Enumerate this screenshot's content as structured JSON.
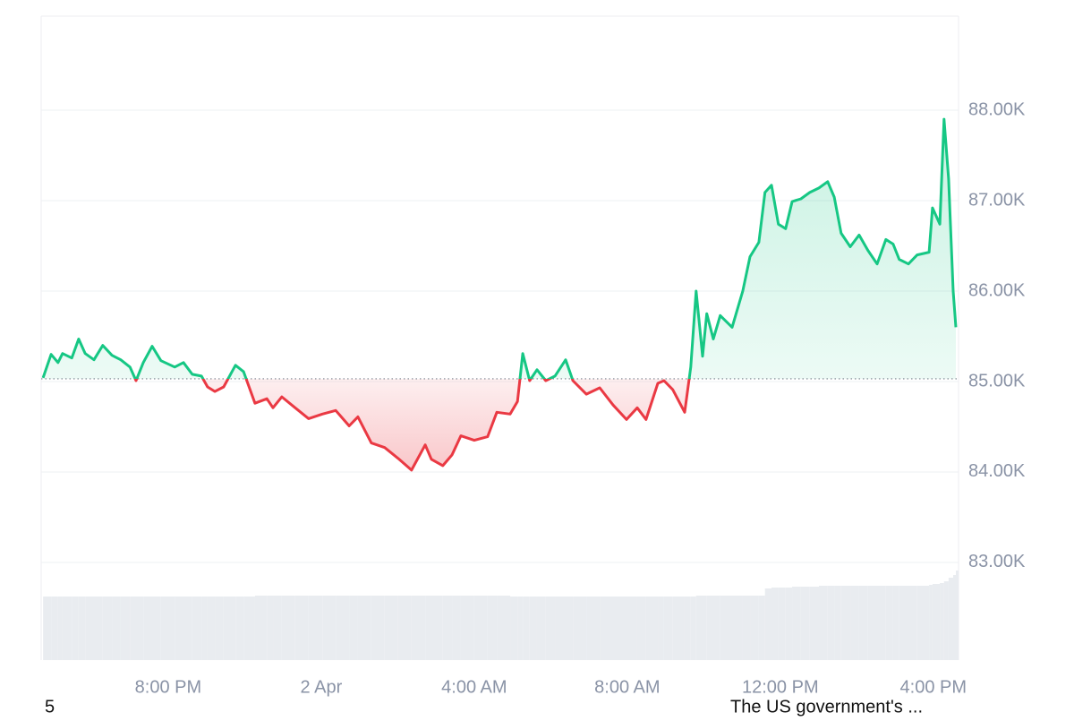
{
  "chart_data": {
    "type": "line",
    "xlim": [
      16.68,
      40.66
    ],
    "ylim": [
      81920,
      89040
    ],
    "baseline": 85030,
    "up_color": "#16c784",
    "down_color": "#ea3943",
    "volume_color": "#e9ecf0",
    "volume_ylim": [
      0,
      100
    ],
    "grid": true,
    "xticks": [
      {
        "value": 20,
        "label": "8:00 PM"
      },
      {
        "value": 24,
        "label": "2 Apr"
      },
      {
        "value": 28,
        "label": "4:00 AM"
      },
      {
        "value": 32,
        "label": "8:00 AM"
      },
      {
        "value": 36,
        "label": "12:00 PM"
      },
      {
        "value": 40,
        "label": "4:00 PM"
      }
    ],
    "yticks": [
      {
        "value": 83000,
        "label": "83.00K"
      },
      {
        "value": 84000,
        "label": "84.00K"
      },
      {
        "value": 85000,
        "label": "85.00K"
      },
      {
        "value": 86000,
        "label": "86.00K"
      },
      {
        "value": 87000,
        "label": "87.00K"
      },
      {
        "value": 88000,
        "label": "88.00K"
      }
    ],
    "x": [
      16.73,
      16.94,
      17.12,
      17.24,
      17.48,
      17.66,
      17.83,
      18.06,
      18.29,
      18.53,
      18.76,
      19.0,
      19.16,
      19.35,
      19.58,
      19.81,
      20.17,
      20.4,
      20.63,
      20.87,
      21.03,
      21.22,
      21.45,
      21.76,
      21.97,
      22.27,
      22.58,
      22.74,
      22.97,
      23.32,
      23.67,
      24.03,
      24.38,
      24.73,
      24.96,
      25.31,
      25.66,
      26.01,
      26.36,
      26.72,
      26.88,
      27.18,
      27.42,
      27.65,
      28.0,
      28.35,
      28.59,
      28.94,
      29.13,
      29.27,
      29.45,
      29.64,
      29.87,
      30.11,
      30.39,
      30.58,
      30.93,
      31.28,
      31.63,
      31.98,
      32.26,
      32.49,
      32.8,
      32.96,
      33.19,
      33.5,
      33.66,
      33.8,
      33.97,
      34.08,
      34.25,
      34.43,
      34.74,
      35.02,
      35.21,
      35.44,
      35.6,
      35.77,
      35.95,
      36.14,
      36.31,
      36.54,
      36.77,
      37.01,
      37.24,
      37.41,
      37.59,
      37.83,
      38.06,
      38.29,
      38.53,
      38.76,
      38.95,
      39.11,
      39.35,
      39.58,
      39.89,
      39.98,
      40.17,
      40.28,
      40.4,
      40.52,
      40.59
    ],
    "values": [
      85040,
      85300,
      85210,
      85310,
      85260,
      85470,
      85310,
      85240,
      85400,
      85290,
      85240,
      85160,
      85010,
      85210,
      85390,
      85230,
      85160,
      85210,
      85080,
      85060,
      84940,
      84890,
      84940,
      85180,
      85110,
      84760,
      84810,
      84710,
      84830,
      84710,
      84590,
      84640,
      84680,
      84510,
      84610,
      84320,
      84270,
      84150,
      84020,
      84300,
      84140,
      84070,
      84190,
      84400,
      84350,
      84390,
      84660,
      84640,
      84780,
      85310,
      85010,
      85130,
      85010,
      85060,
      85240,
      85010,
      84860,
      84930,
      84740,
      84580,
      84710,
      84580,
      84980,
      85010,
      84910,
      84660,
      85160,
      86000,
      85280,
      85750,
      85470,
      85730,
      85600,
      86000,
      86380,
      86540,
      87090,
      87170,
      86740,
      86690,
      86990,
      87020,
      87090,
      87140,
      87210,
      87040,
      86640,
      86490,
      86620,
      86450,
      86300,
      86570,
      86520,
      86350,
      86300,
      86400,
      86430,
      86920,
      86740,
      87900,
      87240,
      86000,
      85600
    ],
    "volume": [
      71,
      71,
      71,
      71,
      71,
      71,
      71,
      71,
      71,
      71,
      71,
      71,
      71,
      71,
      71,
      71,
      71,
      71,
      71,
      71,
      71,
      71,
      71,
      71,
      71,
      72,
      72,
      72,
      72,
      72,
      72,
      72,
      72,
      72,
      72,
      72,
      72,
      72,
      72,
      72,
      72,
      72,
      72,
      72,
      72,
      72,
      72,
      71,
      71,
      71,
      71,
      71,
      71,
      71,
      71,
      71,
      71,
      71,
      71,
      71,
      71,
      71,
      71,
      71,
      71,
      71,
      71,
      72,
      72,
      72,
      72,
      72,
      72,
      72,
      72,
      72,
      80,
      81,
      81,
      81,
      82,
      82,
      82,
      83,
      83,
      83,
      83,
      83,
      83,
      83,
      83,
      83,
      83,
      83,
      83,
      83,
      84,
      85,
      86,
      88,
      92,
      95,
      100
    ]
  },
  "footer_left": "5",
  "footer_right": "The US government's ..."
}
